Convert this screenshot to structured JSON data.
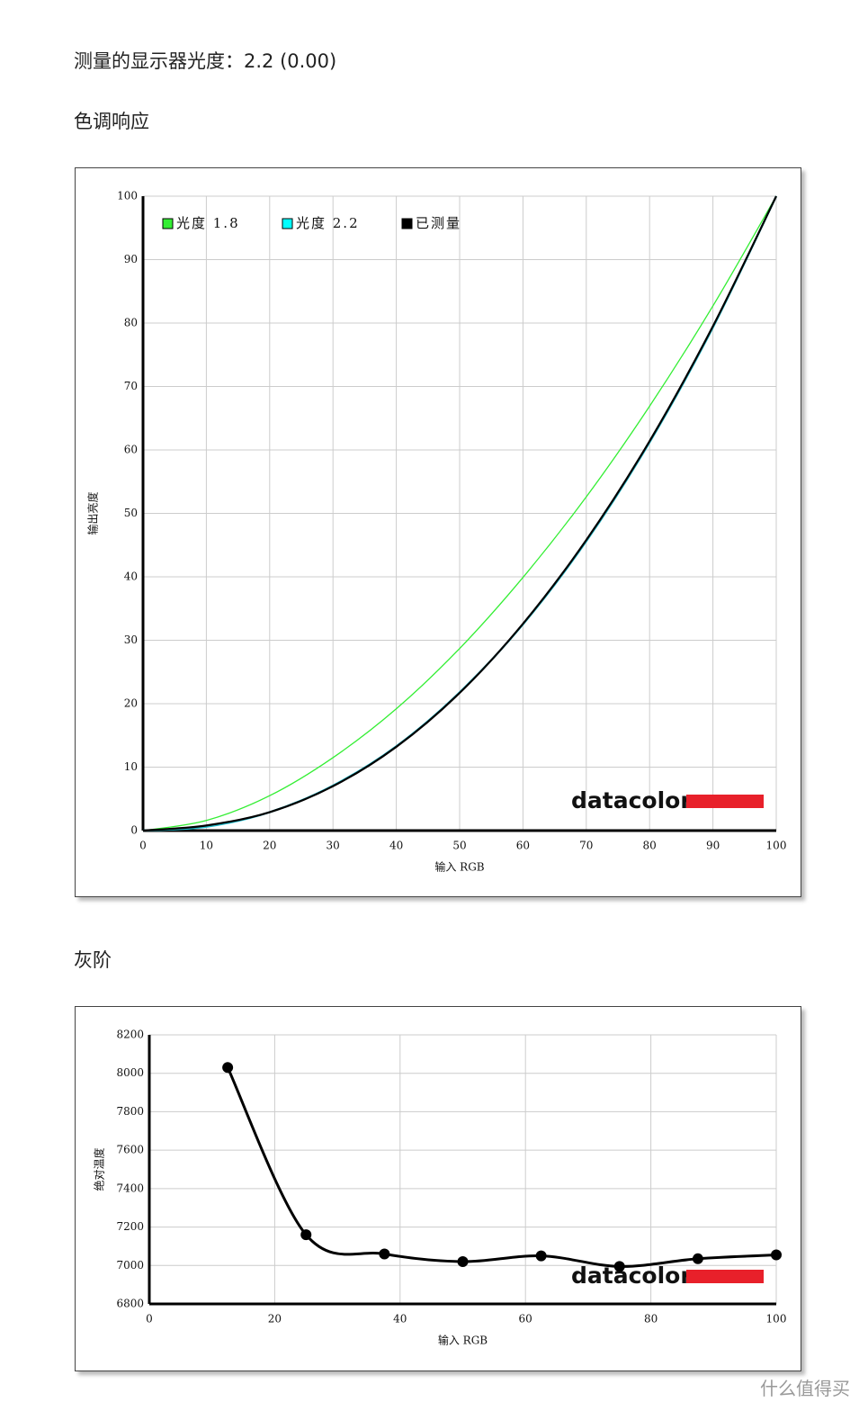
{
  "heading": "测量的显示器光度：2.2 (0.00)",
  "sections": [
    "色调响应",
    "灰阶"
  ],
  "watermark": "什么值得买",
  "chart_data": [
    {
      "type": "line",
      "xlabel": "输入 RGB",
      "ylabel": "输出亮度",
      "logo": "datacolor",
      "x": [
        0,
        10,
        20,
        30,
        40,
        50,
        60,
        70,
        80,
        90,
        100
      ],
      "series": [
        {
          "name": "光度 1.8",
          "color": "#33ee33",
          "values": [
            0,
            1.6,
            5.5,
            11.5,
            19.2,
            28.7,
            39.9,
            52.6,
            66.9,
            82.7,
            100
          ]
        },
        {
          "name": "光度 2.2",
          "color": "#22bbcc",
          "values": [
            0,
            0.6,
            2.9,
            7.1,
            13.3,
            21.8,
            32.5,
            45.6,
            61.2,
            79.3,
            100
          ]
        },
        {
          "name": "已测量",
          "color": "#000000",
          "values": [
            0,
            0.8,
            2.9,
            7.0,
            13.2,
            21.7,
            32.6,
            45.8,
            61.4,
            79.5,
            100
          ]
        }
      ],
      "xlim": [
        0,
        100
      ],
      "ylim": [
        0,
        100
      ],
      "xticks": [
        0,
        10,
        20,
        30,
        40,
        50,
        60,
        70,
        80,
        90,
        100
      ],
      "yticks": [
        0,
        10,
        20,
        30,
        40,
        50,
        60,
        70,
        80,
        90,
        100
      ],
      "grid": true,
      "legend": "upper-left"
    },
    {
      "type": "line",
      "xlabel": "输入 RGB",
      "ylabel": "绝对温度",
      "logo": "datacolor",
      "x": [
        12.5,
        25,
        37.5,
        50,
        62.5,
        75,
        87.5,
        100
      ],
      "series": [
        {
          "color": "#000000",
          "markers": true,
          "values": [
            8030,
            7160,
            7060,
            7020,
            7050,
            6995,
            7035,
            7055
          ]
        }
      ],
      "xlim": [
        0,
        100
      ],
      "ylim": [
        6800,
        8200
      ],
      "xticks": [
        0,
        20,
        40,
        60,
        80,
        100
      ],
      "yticks": [
        6800,
        7000,
        7200,
        7400,
        7600,
        7800,
        8000,
        8200
      ],
      "grid": true
    }
  ]
}
